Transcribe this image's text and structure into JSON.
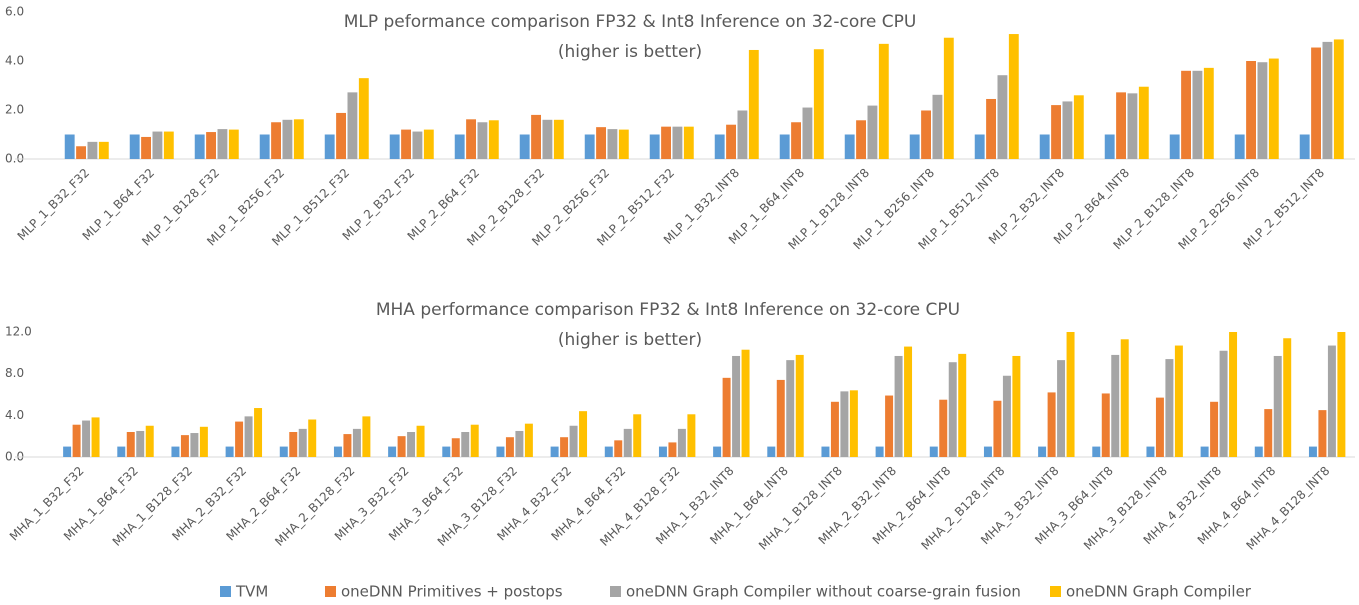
{
  "chart_data": [
    {
      "type": "bar",
      "title": "MLP peformance comparison FP32 & Int8 Inference on 32-core CPU",
      "subtitle": "(higher is better)",
      "categories": [
        "MLP_1_B32_F32",
        "MLP_1_B64_F32",
        "MLP_1_B128_F32",
        "MLP_1_B256_F32",
        "MLP_1_B512_F32",
        "MLP_2_B32_F32",
        "MLP_2_B64_F32",
        "MLP_2_B128_F32",
        "MLP_2_B256_F32",
        "MLP_2_B512_F32",
        "MLP_1_B32_INT8",
        "MLP_1_B64_INT8",
        "MLP_1_B128_INT8",
        "MLP_1_B256_INT8",
        "MLP_1_B512_INT8",
        "MLP_2_B32_INT8",
        "MLP_2_B64_INT8",
        "MLP_2_B128_INT8",
        "MLP_2_B256_INT8",
        "MLP_2_B512_INT8"
      ],
      "series": [
        {
          "color": "#5b9bd5",
          "values": [
            1,
            1,
            1,
            1,
            1,
            1,
            1,
            1,
            1,
            1,
            1,
            1,
            1,
            1,
            1,
            1,
            1,
            1,
            1,
            1
          ]
        },
        {
          "color": "#ed7d31",
          "values": [
            0.52,
            0.9,
            1.1,
            1.5,
            1.88,
            1.2,
            1.62,
            1.8,
            1.3,
            1.32,
            1.4,
            1.5,
            1.58,
            1.98,
            2.45,
            2.2,
            2.72,
            3.6,
            4.0,
            4.55
          ]
        },
        {
          "color": "#a5a5a5",
          "values": [
            0.7,
            1.12,
            1.22,
            1.6,
            2.72,
            1.12,
            1.5,
            1.6,
            1.22,
            1.32,
            1.98,
            2.1,
            2.18,
            2.62,
            3.42,
            2.35,
            2.68,
            3.6,
            3.95,
            4.78
          ]
        },
        {
          "color": "#ffc000",
          "values": [
            0.7,
            1.12,
            1.2,
            1.62,
            3.3,
            1.2,
            1.58,
            1.6,
            1.2,
            1.32,
            4.45,
            4.48,
            4.7,
            4.95,
            5.1,
            2.6,
            2.95,
            3.72,
            4.1,
            4.88
          ]
        }
      ],
      "ylim": [
        0,
        6
      ],
      "yticks": [
        {
          "value": 0,
          "label": "0.0"
        },
        {
          "value": 2,
          "label": "2.0"
        },
        {
          "value": 4,
          "label": "4.0"
        },
        {
          "value": 6,
          "label": "6.0"
        }
      ],
      "grid": false
    },
    {
      "type": "bar",
      "title": "MHA performance comparison FP32 & Int8 Inference on 32-core CPU",
      "subtitle": "(higher is better)",
      "categories": [
        "MHA_1_B32_F32",
        "MHA_1_B64_F32",
        "MHA_1_B128_F32",
        "MHA_2_B32_F32",
        "MHA_2_B64_F32",
        "MHA_2_B128_F32",
        "MHA_3_B32_F32",
        "MHA_3_B64_F32",
        "MHA_3_B128_F32",
        "MHA_4_B32_F32",
        "MHA_4_B64_F32",
        "MHA_4_B128_F32",
        "MHA_1_B32_INT8",
        "MHA_1_B64_INT8",
        "MHA_1_B128_INT8",
        "MHA_2_B32_INT8",
        "MHA_2_B64_INT8",
        "MHA_2_B128_INT8",
        "MHA_3_B32_INT8",
        "MHA_3_B64_INT8",
        "MHA_3_B128_INT8",
        "MHA_4_B32_INT8",
        "MHA_4_B64_INT8",
        "MHA_4_B128_INT8"
      ],
      "series": [
        {
          "name": "TVM",
          "color": "#5b9bd5",
          "values": [
            1,
            1,
            1,
            1,
            1,
            1,
            1,
            1,
            1,
            1,
            1,
            1,
            1,
            1,
            1,
            1,
            1,
            1,
            1,
            1,
            1,
            1,
            1,
            1
          ]
        },
        {
          "name": "oneDNN Primitives + postops",
          "color": "#ed7d31",
          "values": [
            3.1,
            2.4,
            2.1,
            3.4,
            2.4,
            2.2,
            2.0,
            1.8,
            1.9,
            1.9,
            1.6,
            1.4,
            7.6,
            7.4,
            5.3,
            5.9,
            5.5,
            5.4,
            6.2,
            6.1,
            5.7,
            5.3,
            4.6,
            4.5
          ]
        },
        {
          "name": "oneDNN Graph Compiler without coarse-grain fusion",
          "color": "#a5a5a5",
          "values": [
            3.5,
            2.5,
            2.3,
            3.9,
            2.7,
            2.7,
            2.4,
            2.4,
            2.5,
            3.0,
            2.7,
            2.7,
            9.7,
            9.3,
            6.3,
            9.7,
            9.1,
            7.8,
            9.3,
            9.8,
            9.4,
            10.2,
            9.7,
            10.7
          ]
        },
        {
          "name": "oneDNN Graph Compiler",
          "color": "#ffc000",
          "values": [
            3.8,
            3.0,
            2.9,
            4.7,
            3.6,
            3.9,
            3.0,
            3.1,
            3.2,
            4.4,
            4.1,
            4.1,
            10.3,
            9.8,
            6.4,
            10.6,
            9.9,
            9.7,
            12.0,
            11.3,
            10.7,
            12.0,
            11.4,
            12.0
          ]
        }
      ],
      "ylim": [
        0,
        12
      ],
      "yticks": [
        {
          "value": 0,
          "label": "0.0"
        },
        {
          "value": 4,
          "label": "4.0"
        },
        {
          "value": 8,
          "label": "8.0"
        },
        {
          "value": 12,
          "label": "12.0"
        }
      ],
      "grid": false
    }
  ]
}
